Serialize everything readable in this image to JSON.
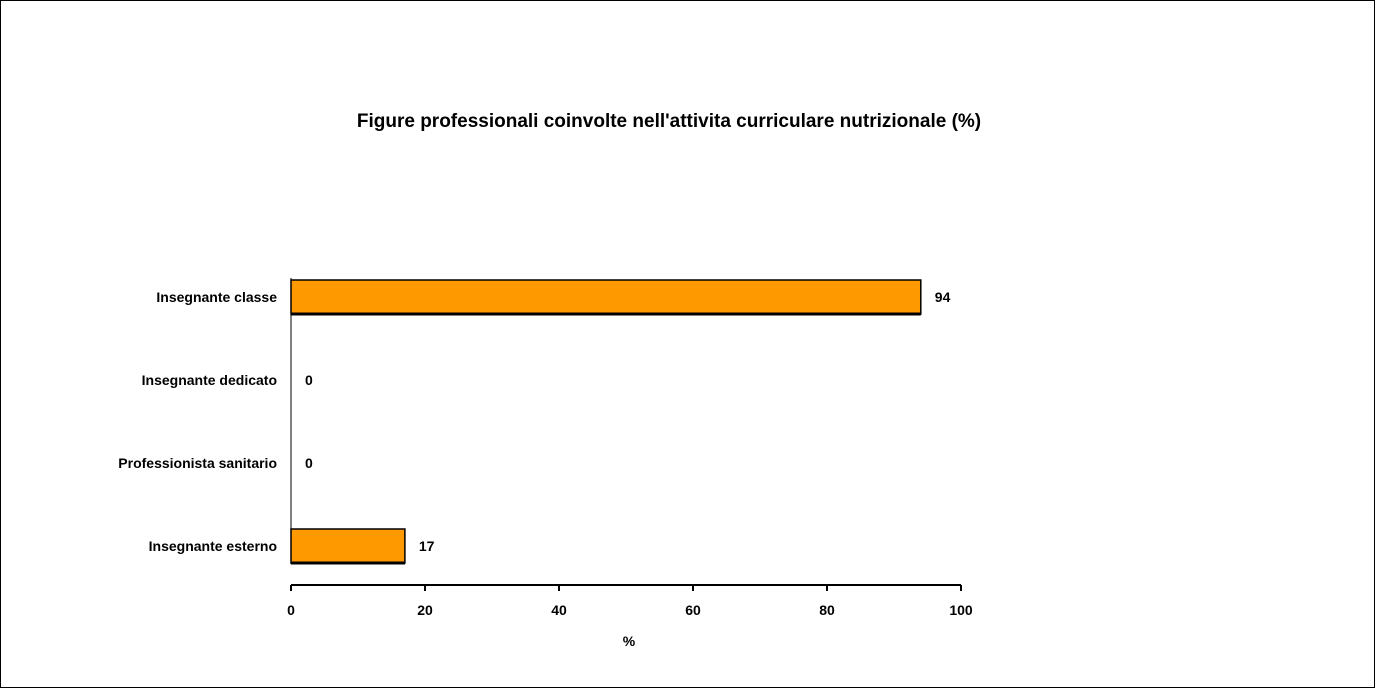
{
  "chart_data": {
    "type": "bar",
    "orientation": "horizontal",
    "title": "Figure professionali coinvolte nell'attivita curriculare nutrizionale (%)",
    "categories": [
      "Insegnante classe",
      "Insegnante dedicato",
      "Professionista sanitario",
      "Insegnante esterno"
    ],
    "values": [
      94,
      0,
      0,
      17
    ],
    "data_labels": [
      "94",
      "0",
      "0",
      "17"
    ],
    "xlabel": "%",
    "ylabel": "",
    "xlim": [
      0,
      100
    ],
    "x_ticks": [
      0,
      20,
      40,
      60,
      80,
      100
    ],
    "x_tick_labels": [
      "0",
      "20",
      "40",
      "60",
      "80",
      "100"
    ],
    "grid": false,
    "legend": "none",
    "colors": {
      "bar_fill": "#FF9900",
      "bar_stroke": "#000000",
      "axis": "#000000"
    }
  }
}
